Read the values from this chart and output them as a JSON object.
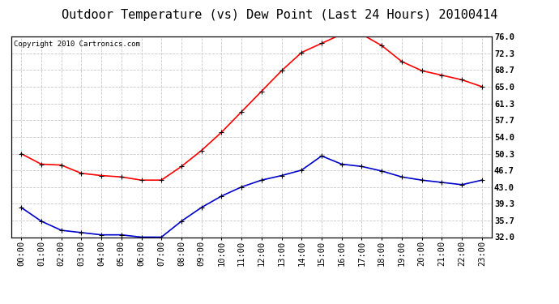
{
  "title": "Outdoor Temperature (vs) Dew Point (Last 24 Hours) 20100414",
  "copyright": "Copyright 2010 Cartronics.com",
  "x_labels": [
    "00:00",
    "01:00",
    "02:00",
    "03:00",
    "04:00",
    "05:00",
    "06:00",
    "07:00",
    "08:00",
    "09:00",
    "10:00",
    "11:00",
    "12:00",
    "13:00",
    "14:00",
    "15:00",
    "16:00",
    "17:00",
    "18:00",
    "19:00",
    "20:00",
    "21:00",
    "22:00",
    "23:00"
  ],
  "temp_data": [
    50.3,
    48.0,
    47.8,
    46.0,
    45.5,
    45.2,
    44.5,
    44.5,
    47.5,
    51.0,
    55.0,
    59.5,
    64.0,
    68.5,
    72.5,
    74.5,
    76.5,
    76.5,
    74.0,
    70.5,
    68.5,
    67.5,
    66.5,
    65.0
  ],
  "dew_data": [
    38.5,
    35.5,
    33.5,
    33.0,
    32.5,
    32.5,
    32.0,
    32.0,
    35.5,
    38.5,
    41.0,
    43.0,
    44.5,
    45.5,
    46.7,
    49.8,
    48.0,
    47.5,
    46.5,
    45.2,
    44.5,
    44.0,
    43.5,
    44.5
  ],
  "temp_color": "#ff0000",
  "dew_color": "#0000cc",
  "bg_color": "#ffffff",
  "grid_color": "#c8c8c8",
  "ylim": [
    32.0,
    76.0
  ],
  "yticks": [
    32.0,
    35.7,
    39.3,
    43.0,
    46.7,
    50.3,
    54.0,
    57.7,
    61.3,
    65.0,
    68.7,
    72.3,
    76.0
  ],
  "title_fontsize": 11,
  "copyright_fontsize": 6.5,
  "tick_fontsize": 7.5,
  "marker_size": 4
}
